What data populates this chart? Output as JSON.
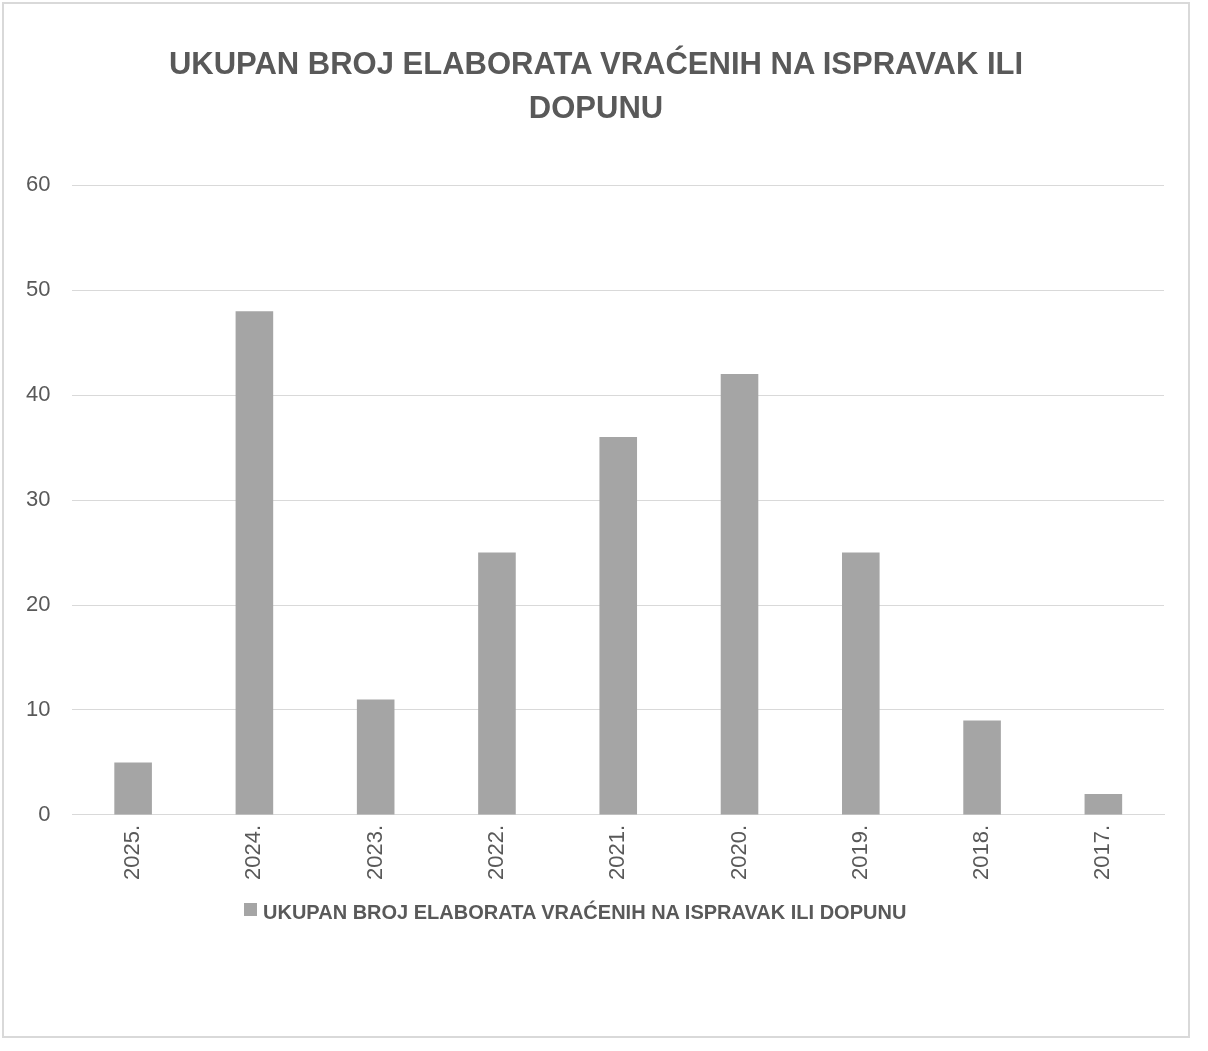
{
  "chart_data": {
    "type": "bar",
    "title": "UKUPAN BROJ ELABORATA VRAĆENIH NA ISPRAVAK ILI DOPUNU",
    "categories": [
      "2025.",
      "2024.",
      "2023.",
      "2022.",
      "2021.",
      "2020.",
      "2019.",
      "2018.",
      "2017."
    ],
    "series": [
      {
        "name": "UKUPAN BROJ ELABORATA VRAĆENIH NA ISPRAVAK ILI DOPUNU",
        "color": "#a5a5a5",
        "values": [
          5,
          48,
          11,
          25,
          36,
          42,
          25,
          9,
          2
        ]
      }
    ],
    "ylim": [
      0,
      60
    ],
    "yticks": [
      0,
      10,
      20,
      30,
      40,
      50,
      60
    ],
    "grid": "y",
    "legend": "bottom"
  }
}
